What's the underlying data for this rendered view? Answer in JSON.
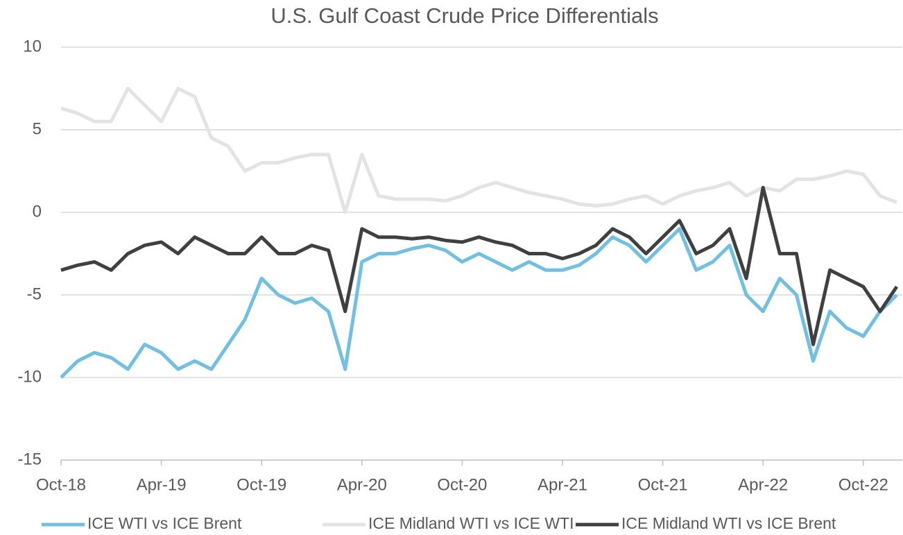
{
  "chart_data": {
    "type": "line",
    "title": "U.S. Gulf Coast Crude Price Differentials",
    "x": [
      "Oct-18",
      "Nov-18",
      "Dec-18",
      "Jan-19",
      "Feb-19",
      "Mar-19",
      "Apr-19",
      "May-19",
      "Jun-19",
      "Jul-19",
      "Aug-19",
      "Sep-19",
      "Oct-19",
      "Nov-19",
      "Dec-19",
      "Jan-20",
      "Feb-20",
      "Mar-20",
      "Apr-20",
      "May-20",
      "Jun-20",
      "Jul-20",
      "Aug-20",
      "Sep-20",
      "Oct-20",
      "Nov-20",
      "Dec-20",
      "Jan-21",
      "Feb-21",
      "Mar-21",
      "Apr-21",
      "May-21",
      "Jun-21",
      "Jul-21",
      "Aug-21",
      "Sep-21",
      "Oct-21",
      "Nov-21",
      "Dec-21",
      "Jan-22",
      "Feb-22",
      "Mar-22",
      "Apr-22",
      "May-22",
      "Jun-22",
      "Jul-22",
      "Aug-22",
      "Sep-22",
      "Oct-22",
      "Nov-22",
      "Dec-22"
    ],
    "series": [
      {
        "name": "ICE WTI vs ICE Brent",
        "color": "#6ec1e4",
        "values": [
          -10,
          -9,
          -8.5,
          -8.8,
          -9.5,
          -8,
          -8.5,
          -9.5,
          -9,
          -9.5,
          -8,
          -6.5,
          -4,
          -5,
          -5.5,
          -5.2,
          -6,
          -9.5,
          -3,
          -2.5,
          -2.5,
          -2.2,
          -2,
          -2.3,
          -3,
          -2.5,
          -3,
          -3.5,
          -3,
          -3.5,
          -3.5,
          -3.2,
          -2.5,
          -1.5,
          -2,
          -3,
          -2,
          -1,
          -3.5,
          -3,
          -2,
          -5,
          -6,
          -4,
          -5,
          -9,
          -6,
          -7,
          -7.5,
          -6,
          -5
        ]
      },
      {
        "name": "ICE Midland WTI vs ICE WTI",
        "color": "#e3e3e3",
        "values": [
          6.3,
          6,
          5.5,
          5.5,
          7.5,
          6.5,
          5.5,
          7.5,
          7,
          4.5,
          4,
          2.5,
          3,
          3,
          3.3,
          3.5,
          3.5,
          0,
          3.5,
          1,
          0.8,
          0.8,
          0.8,
          0.7,
          1,
          1.5,
          1.8,
          1.5,
          1.2,
          1,
          0.8,
          0.5,
          0.4,
          0.5,
          0.8,
          1,
          0.5,
          1,
          1.3,
          1.5,
          1.8,
          1,
          1.5,
          1.3,
          2,
          2,
          2.2,
          2.5,
          2.3,
          1,
          0.6
        ]
      },
      {
        "name": "ICE Midland WTI vs ICE Brent",
        "color": "#404040",
        "values": [
          -3.5,
          -3.2,
          -3,
          -3.5,
          -2.5,
          -2,
          -1.8,
          -2.5,
          -1.5,
          -2,
          -2.5,
          -2.5,
          -1.5,
          -2.5,
          -2.5,
          -2,
          -2.3,
          -6,
          -1,
          -1.5,
          -1.5,
          -1.6,
          -1.5,
          -1.7,
          -1.8,
          -1.5,
          -1.8,
          -2,
          -2.5,
          -2.5,
          -2.8,
          -2.5,
          -2,
          -1,
          -1.5,
          -2.5,
          -1.5,
          -0.5,
          -2.5,
          -2,
          -1,
          -4,
          1.5,
          -2.5,
          -2.5,
          -8,
          -3.5,
          -4,
          -4.5,
          -6,
          -4.5
        ]
      }
    ],
    "xticks": [
      "Oct-18",
      "Apr-19",
      "Oct-19",
      "Apr-20",
      "Oct-20",
      "Apr-21",
      "Oct-21",
      "Apr-22",
      "Oct-22"
    ],
    "ylim": [
      -15,
      10
    ],
    "yticks": [
      -15,
      -10,
      -5,
      0,
      5,
      10
    ],
    "grid": true,
    "legend": "bottom"
  }
}
